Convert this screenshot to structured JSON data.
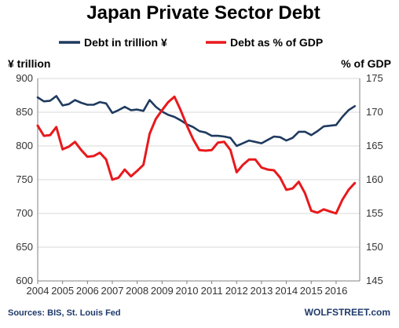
{
  "chart_data": {
    "type": "line",
    "title": "Japan Private Sector Debt",
    "left_axis_label": "¥ trillion",
    "right_axis_label": "% of GDP",
    "x_ticks": [
      "2004",
      "2005",
      "2006",
      "2007",
      "2008",
      "2009",
      "2010",
      "2011",
      "2012",
      "2013",
      "2014",
      "2015",
      "2016"
    ],
    "y_left_ticks": [
      600,
      650,
      700,
      750,
      800,
      850,
      900
    ],
    "y_right_ticks": [
      145,
      150,
      155,
      160,
      165,
      170,
      175
    ],
    "ylim_left": [
      600,
      900
    ],
    "ylim_right": [
      145,
      175
    ],
    "grid": "horizontal",
    "legend_position": "top",
    "source": "Sources: BIS, St. Louis Fed",
    "brand": "WOLFSTREET.com",
    "series": [
      {
        "name": "Debt in trillion ¥",
        "axis": "left",
        "color": "#1f3a5f",
        "x": [
          2004.0,
          2004.25,
          2004.5,
          2004.75,
          2005.0,
          2005.25,
          2005.5,
          2005.75,
          2006.0,
          2006.25,
          2006.5,
          2006.75,
          2007.0,
          2007.25,
          2007.5,
          2007.75,
          2008.0,
          2008.25,
          2008.5,
          2008.75,
          2009.0,
          2009.25,
          2009.5,
          2009.75,
          2010.0,
          2010.25,
          2010.5,
          2010.75,
          2011.0,
          2011.25,
          2011.5,
          2011.75,
          2012.0,
          2012.25,
          2012.5,
          2012.75,
          2013.0,
          2013.25,
          2013.5,
          2013.75,
          2014.0,
          2014.25,
          2014.5,
          2014.75,
          2015.0,
          2015.25,
          2015.5,
          2015.75,
          2016.0,
          2016.25,
          2016.5,
          2016.75
        ],
        "values": [
          872,
          866,
          867,
          874,
          860,
          862,
          868,
          864,
          861,
          861,
          865,
          863,
          849,
          853,
          858,
          853,
          854,
          852,
          868,
          858,
          851,
          846,
          843,
          838,
          832,
          828,
          822,
          820,
          815,
          815,
          814,
          812,
          800,
          804,
          808,
          806,
          804,
          809,
          814,
          813,
          808,
          812,
          821,
          821,
          816,
          822,
          829,
          830,
          831,
          843,
          853,
          859
        ]
      },
      {
        "name": "Debt as % of GDP",
        "axis": "right",
        "color": "#e8191c",
        "x": [
          2004.0,
          2004.25,
          2004.5,
          2004.75,
          2005.0,
          2005.25,
          2005.5,
          2005.75,
          2006.0,
          2006.25,
          2006.5,
          2006.75,
          2007.0,
          2007.25,
          2007.5,
          2007.75,
          2008.0,
          2008.25,
          2008.5,
          2008.75,
          2009.0,
          2009.25,
          2009.5,
          2009.75,
          2010.0,
          2010.25,
          2010.5,
          2010.75,
          2011.0,
          2011.25,
          2011.5,
          2011.75,
          2012.0,
          2012.25,
          2012.5,
          2012.75,
          2013.0,
          2013.25,
          2013.5,
          2013.75,
          2014.0,
          2014.25,
          2014.5,
          2014.75,
          2015.0,
          2015.25,
          2015.5,
          2015.75,
          2016.0,
          2016.25,
          2016.5,
          2016.75
        ],
        "values": [
          168.0,
          166.5,
          166.6,
          167.8,
          164.5,
          164.9,
          165.6,
          164.4,
          163.4,
          163.5,
          164.0,
          163.0,
          160.0,
          160.3,
          161.5,
          160.5,
          161.3,
          162.2,
          166.8,
          169.0,
          170.3,
          171.5,
          172.3,
          170.3,
          168.0,
          166.0,
          164.4,
          164.3,
          164.4,
          165.5,
          165.6,
          164.4,
          161.1,
          162.2,
          163.0,
          163.0,
          161.8,
          161.5,
          161.4,
          160.3,
          158.5,
          158.7,
          159.7,
          158.0,
          155.4,
          155.1,
          155.6,
          155.3,
          155.0,
          157.0,
          158.5,
          159.5
        ]
      }
    ]
  }
}
